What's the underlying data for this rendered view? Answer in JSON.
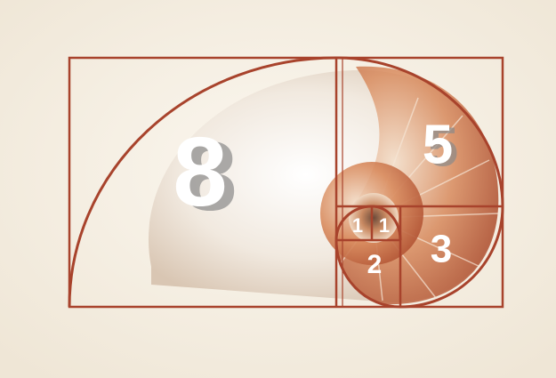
{
  "labels": {
    "eight": "8",
    "five": "5",
    "three": "3",
    "two": "2",
    "one_left": "1",
    "one_right": "1"
  }
}
